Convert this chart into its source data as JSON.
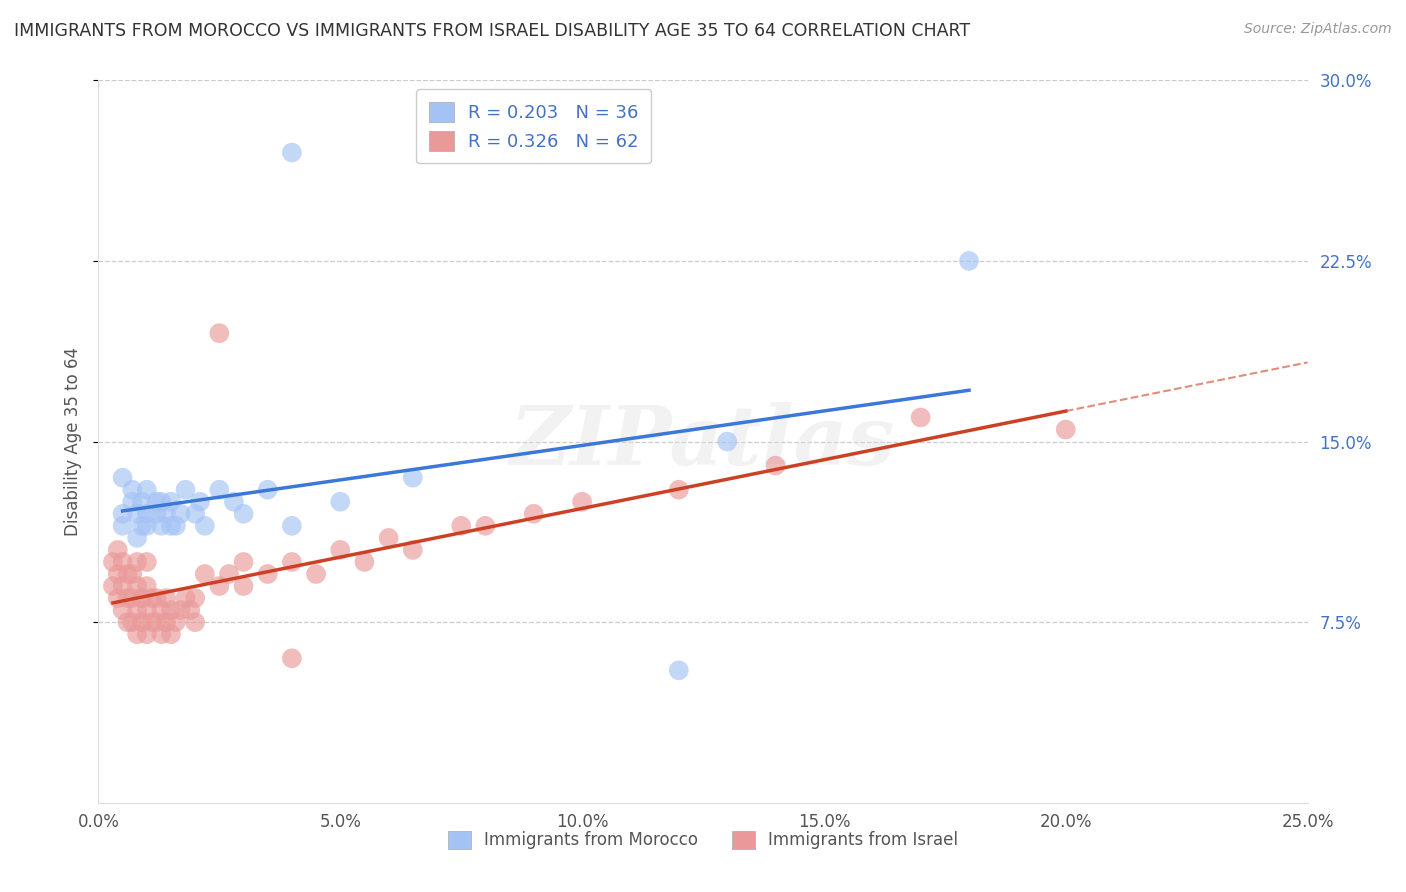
{
  "title": "IMMIGRANTS FROM MOROCCO VS IMMIGRANTS FROM ISRAEL DISABILITY AGE 35 TO 64 CORRELATION CHART",
  "source": "Source: ZipAtlas.com",
  "ylabel": "Disability Age 35 to 64",
  "xlim": [
    0.0,
    0.25
  ],
  "ylim": [
    0.0,
    0.3
  ],
  "blue_color": "#a4c2f4",
  "pink_color": "#ea9999",
  "blue_line_color": "#3c78d8",
  "pink_line_color": "#cc4125",
  "pink_dash_color": "#cc4125",
  "watermark_text": "ZIPatlas",
  "ytick_color": "#4472c4",
  "ytick_vals": [
    0.075,
    0.15,
    0.225,
    0.3
  ],
  "ytick_labels": [
    "7.5%",
    "15.0%",
    "22.5%",
    "30.0%"
  ],
  "xtick_vals": [
    0.0,
    0.05,
    0.1,
    0.15,
    0.2,
    0.25
  ],
  "xtick_labels": [
    "0.0%",
    "5.0%",
    "10.0%",
    "15.0%",
    "20.0%",
    "25.0%"
  ],
  "blue_scatter_x": [
    0.005,
    0.005,
    0.005,
    0.007,
    0.007,
    0.008,
    0.008,
    0.009,
    0.009,
    0.01,
    0.01,
    0.01,
    0.012,
    0.012,
    0.013,
    0.013,
    0.014,
    0.015,
    0.015,
    0.016,
    0.017,
    0.018,
    0.02,
    0.021,
    0.022,
    0.025,
    0.028,
    0.03,
    0.035,
    0.04,
    0.05,
    0.065,
    0.18,
    0.04,
    0.12,
    0.13
  ],
  "blue_scatter_y": [
    0.12,
    0.135,
    0.115,
    0.125,
    0.13,
    0.11,
    0.12,
    0.115,
    0.125,
    0.115,
    0.12,
    0.13,
    0.12,
    0.125,
    0.115,
    0.125,
    0.12,
    0.115,
    0.125,
    0.115,
    0.12,
    0.13,
    0.12,
    0.125,
    0.115,
    0.13,
    0.125,
    0.12,
    0.13,
    0.115,
    0.125,
    0.135,
    0.225,
    0.27,
    0.055,
    0.15
  ],
  "pink_scatter_x": [
    0.003,
    0.003,
    0.004,
    0.004,
    0.004,
    0.005,
    0.005,
    0.005,
    0.006,
    0.006,
    0.006,
    0.007,
    0.007,
    0.007,
    0.008,
    0.008,
    0.008,
    0.008,
    0.009,
    0.009,
    0.01,
    0.01,
    0.01,
    0.01,
    0.011,
    0.011,
    0.012,
    0.012,
    0.013,
    0.013,
    0.014,
    0.014,
    0.015,
    0.015,
    0.016,
    0.017,
    0.018,
    0.019,
    0.02,
    0.02,
    0.022,
    0.025,
    0.027,
    0.03,
    0.03,
    0.035,
    0.04,
    0.045,
    0.05,
    0.055,
    0.06,
    0.065,
    0.075,
    0.08,
    0.09,
    0.1,
    0.12,
    0.14,
    0.17,
    0.2,
    0.025,
    0.04
  ],
  "pink_scatter_y": [
    0.09,
    0.1,
    0.085,
    0.095,
    0.105,
    0.08,
    0.09,
    0.1,
    0.075,
    0.085,
    0.095,
    0.075,
    0.085,
    0.095,
    0.07,
    0.08,
    0.09,
    0.1,
    0.075,
    0.085,
    0.07,
    0.08,
    0.09,
    0.1,
    0.075,
    0.085,
    0.075,
    0.085,
    0.07,
    0.08,
    0.075,
    0.085,
    0.07,
    0.08,
    0.075,
    0.08,
    0.085,
    0.08,
    0.075,
    0.085,
    0.095,
    0.09,
    0.095,
    0.09,
    0.1,
    0.095,
    0.1,
    0.095,
    0.105,
    0.1,
    0.11,
    0.105,
    0.115,
    0.115,
    0.12,
    0.125,
    0.13,
    0.14,
    0.16,
    0.155,
    0.195,
    0.06
  ]
}
